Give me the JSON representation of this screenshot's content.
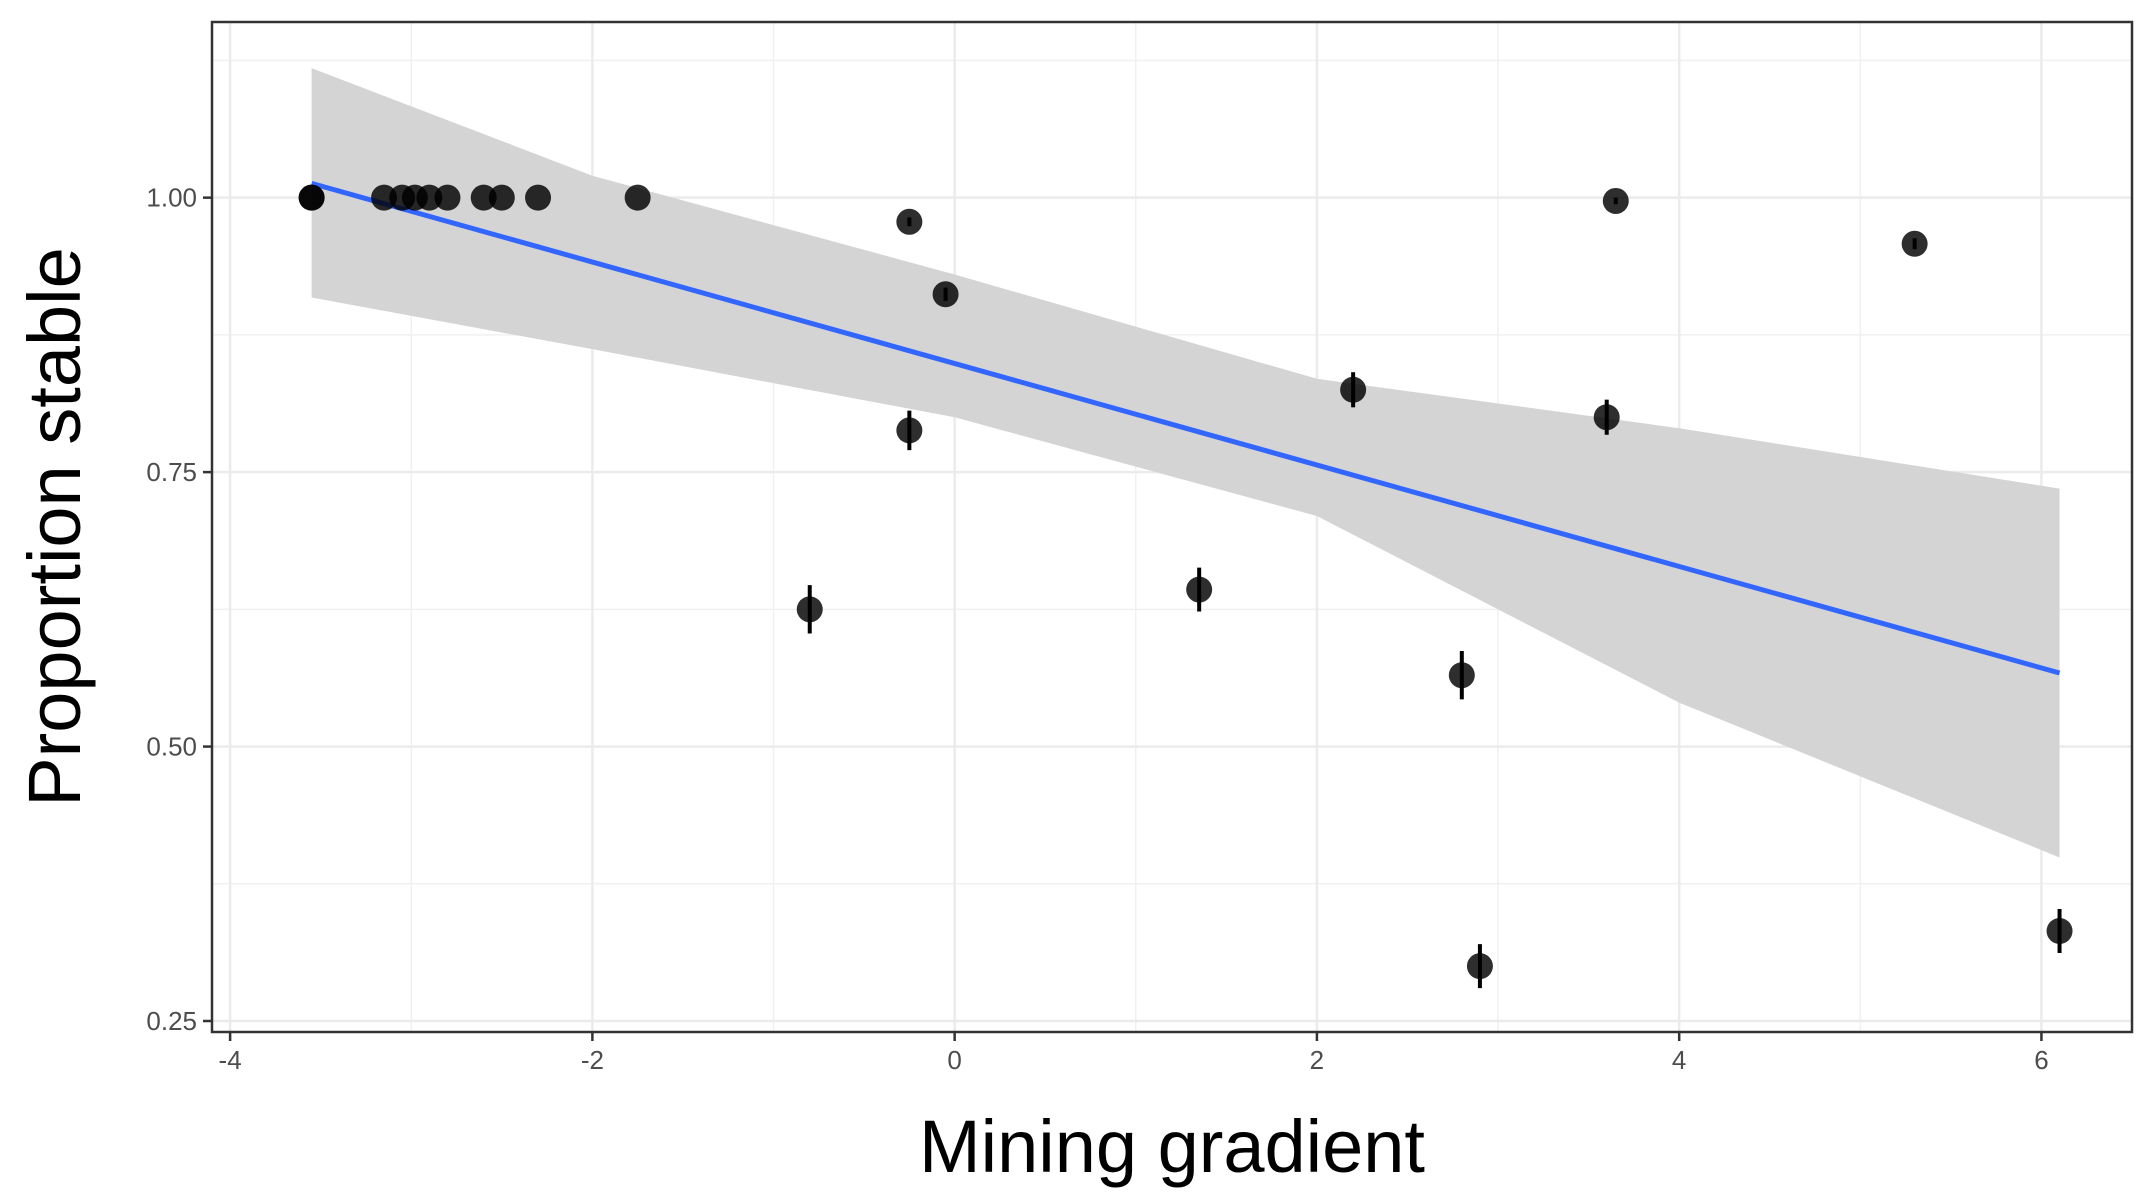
{
  "chart_data": {
    "type": "scatter",
    "xlabel": "Mining gradient",
    "ylabel": "Proportion stable",
    "xlim": [
      -4.1,
      6.5
    ],
    "ylim": [
      0.24,
      1.16
    ],
    "x_ticks": [
      -4,
      -2,
      0,
      2,
      4,
      6
    ],
    "x_tick_labels": [
      "-4",
      "-2",
      "0",
      "2",
      "4",
      "6"
    ],
    "y_ticks": [
      0.25,
      0.5,
      0.75,
      1.0
    ],
    "y_tick_labels": [
      "0.25",
      "0.50",
      "0.75",
      "1.00"
    ],
    "grid": true,
    "legend": "none",
    "points": [
      {
        "x": -3.55,
        "y": 1.0,
        "err": 0.0
      },
      {
        "x": -3.55,
        "y": 1.0,
        "err": 0.0
      },
      {
        "x": -3.15,
        "y": 1.0,
        "err": 0.0
      },
      {
        "x": -3.05,
        "y": 1.0,
        "err": 0.0
      },
      {
        "x": -2.98,
        "y": 1.0,
        "err": 0.0
      },
      {
        "x": -2.9,
        "y": 1.0,
        "err": 0.0
      },
      {
        "x": -2.8,
        "y": 1.0,
        "err": 0.0
      },
      {
        "x": -2.6,
        "y": 1.0,
        "err": 0.0
      },
      {
        "x": -2.5,
        "y": 1.0,
        "err": 0.0
      },
      {
        "x": -2.3,
        "y": 1.0,
        "err": 0.0
      },
      {
        "x": -1.75,
        "y": 1.0,
        "err": 0.0
      },
      {
        "x": -0.8,
        "y": 0.625,
        "err": 0.022
      },
      {
        "x": -0.25,
        "y": 0.978,
        "err": 0.004
      },
      {
        "x": -0.25,
        "y": 0.788,
        "err": 0.018
      },
      {
        "x": -0.05,
        "y": 0.912,
        "err": 0.006
      },
      {
        "x": 1.35,
        "y": 0.643,
        "err": 0.02
      },
      {
        "x": 2.2,
        "y": 0.825,
        "err": 0.016
      },
      {
        "x": 2.8,
        "y": 0.565,
        "err": 0.022
      },
      {
        "x": 2.9,
        "y": 0.3,
        "err": 0.02
      },
      {
        "x": 3.6,
        "y": 0.8,
        "err": 0.016
      },
      {
        "x": 3.65,
        "y": 0.997,
        "err": 0.003
      },
      {
        "x": 5.3,
        "y": 0.958,
        "err": 0.005
      },
      {
        "x": 6.1,
        "y": 0.332,
        "err": 0.02
      }
    ],
    "fit_line": {
      "x": [
        -3.55,
        6.1
      ],
      "y": [
        1.013,
        0.567
      ],
      "color": "#3366ff"
    },
    "confidence_band": {
      "x": [
        -3.55,
        -2,
        0,
        2,
        4,
        6.1
      ],
      "lower": [
        0.909,
        0.862,
        0.8,
        0.71,
        0.54,
        0.399
      ],
      "upper": [
        1.118,
        1.02,
        0.93,
        0.835,
        0.79,
        0.735
      ],
      "color": "#d4d4d4"
    },
    "point_color": "#000000"
  }
}
